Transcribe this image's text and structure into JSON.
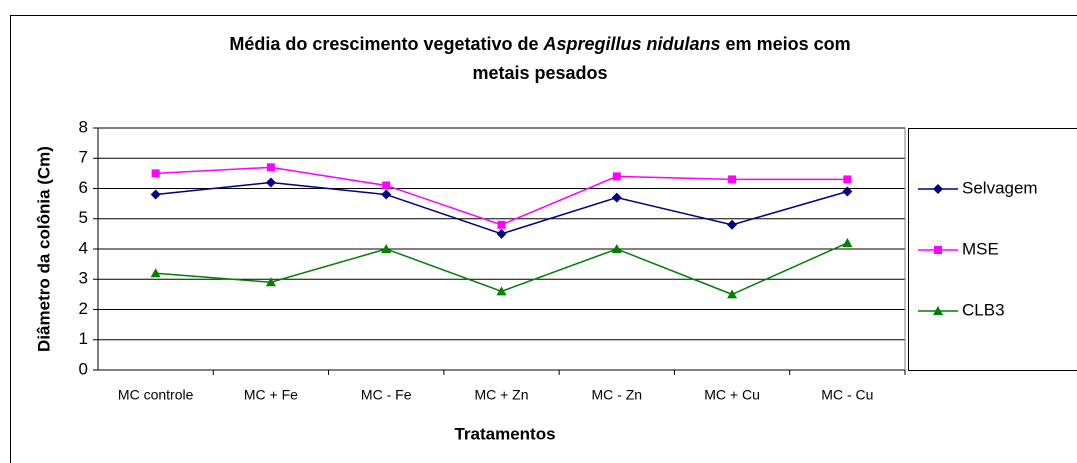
{
  "chart_data": {
    "type": "line",
    "title": [
      "Média do crescimento vegetativo de",
      "Aspregillus nidulans",
      "em meios com",
      "metais pesados"
    ],
    "x_label": "Tratamentos",
    "y_label": "Diâmetro da colônia (Cm)",
    "categories": [
      "MC controle",
      "MC + Fe",
      "MC - Fe",
      "MC + Zn",
      "MC - Zn",
      "MC + Cu",
      "MC - Cu"
    ],
    "series": [
      {
        "name": "Selvagem",
        "color": "#000080",
        "marker": "diamond",
        "values": [
          5.8,
          6.2,
          5.8,
          4.5,
          5.7,
          4.8,
          5.9
        ]
      },
      {
        "name": "MSE",
        "color": "#ff00ff",
        "marker": "square",
        "values": [
          6.5,
          6.7,
          6.1,
          4.8,
          6.4,
          6.3,
          6.3
        ]
      },
      {
        "name": "CLB3",
        "color": "#008000",
        "marker": "triangle",
        "values": [
          3.2,
          2.9,
          4.0,
          2.6,
          4.0,
          2.5,
          4.2
        ]
      }
    ],
    "ylim": [
      0,
      8
    ],
    "yticks": [
      0,
      1,
      2,
      3,
      4,
      5,
      6,
      7,
      8
    ],
    "grid": true,
    "legend": "right"
  }
}
